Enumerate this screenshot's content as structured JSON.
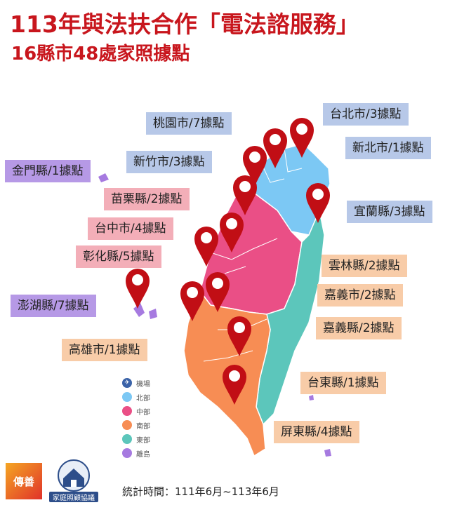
{
  "title_line1": "113年與法扶合作「電法諮服務」",
  "title_line2": "16縣市48處家照據點",
  "labels": {
    "taoyuan": "桃園市/7據點",
    "taipei": "台北市/3據點",
    "hsinchu": "新竹市/3據點",
    "newtaipei": "新北市/1據點",
    "kinmen": "金門縣/1據點",
    "miaoli": "苗栗縣/2據點",
    "yilan": "宜蘭縣/3據點",
    "taichung": "台中市/4據點",
    "changhua": "彰化縣/5據點",
    "yunlin": "雲林縣/2據點",
    "penghu": "澎湖縣/7據點",
    "chiayicity": "嘉義市/2據點",
    "chiayicounty": "嘉義縣/2據點",
    "kaohsiung": "高雄市/1據點",
    "taitung": "台東縣/1據點",
    "pingtung": "屏東縣/4據點"
  },
  "legend": [
    "機場",
    "北部",
    "中部",
    "南部",
    "東部",
    "離島"
  ],
  "colors": {
    "airport": "#3b63a8",
    "north": "#7cc8f4",
    "central": "#ea4f86",
    "south": "#f78d54",
    "east": "#5cc6bb",
    "island": "#a67ae0",
    "pin": "#c10e15",
    "title": "#c8161d"
  },
  "footer": "統計時間：111年6月~113年6月",
  "logos": {
    "chuanshan": "傳善",
    "association": "家庭照顧協議"
  }
}
